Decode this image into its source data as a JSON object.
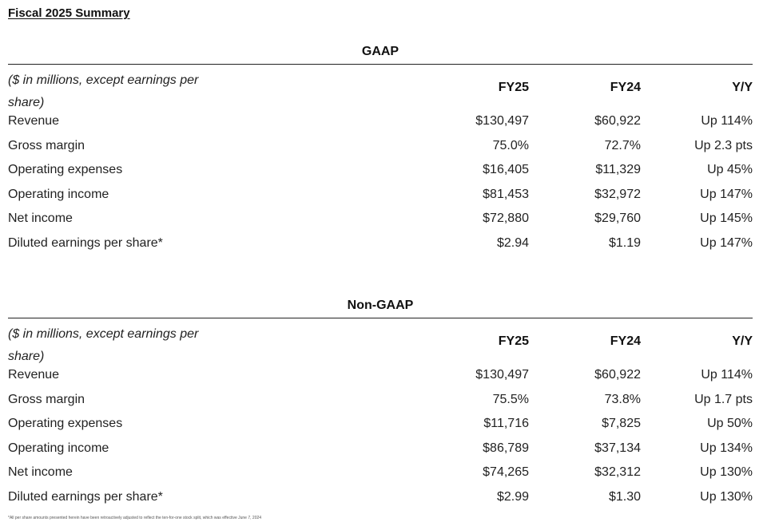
{
  "title": "Fiscal 2025 Summary",
  "columns": {
    "label": "($ in millions, except earnings per share)",
    "fy25": "FY25",
    "fy24": "FY24",
    "yy": "Y/Y"
  },
  "gaap": {
    "heading": "GAAP",
    "rows": [
      {
        "label": "Revenue",
        "fy25": "$130,497",
        "fy24": "$60,922",
        "yy": "Up 114%"
      },
      {
        "label": "Gross margin",
        "fy25": "75.0%",
        "fy24": "72.7%",
        "yy": "Up 2.3 pts"
      },
      {
        "label": "Operating expenses",
        "fy25": "$16,405",
        "fy24": "$11,329",
        "yy": "Up 45%"
      },
      {
        "label": "Operating income",
        "fy25": "$81,453",
        "fy24": "$32,972",
        "yy": "Up 147%"
      },
      {
        "label": "Net income",
        "fy25": "$72,880",
        "fy24": "$29,760",
        "yy": "Up 145%"
      },
      {
        "label": "Diluted earnings per share*",
        "fy25": "$2.94",
        "fy24": "$1.19",
        "yy": "Up 147%"
      }
    ]
  },
  "nongaap": {
    "heading": "Non-GAAP",
    "rows": [
      {
        "label": "Revenue",
        "fy25": "$130,497",
        "fy24": "$60,922",
        "yy": "Up 114%"
      },
      {
        "label": "Gross margin",
        "fy25": "75.5%",
        "fy24": "73.8%",
        "yy": "Up 1.7 pts"
      },
      {
        "label": "Operating expenses",
        "fy25": "$11,716",
        "fy24": "$7,825",
        "yy": "Up 50%"
      },
      {
        "label": "Operating income",
        "fy25": "$86,789",
        "fy24": "$37,134",
        "yy": "Up 134%"
      },
      {
        "label": "Net income",
        "fy25": "$74,265",
        "fy24": "$32,312",
        "yy": "Up 130%"
      },
      {
        "label": "Diluted earnings per share*",
        "fy25": "$2.99",
        "fy24": "$1.30",
        "yy": "Up 130%"
      }
    ]
  },
  "footnote": "*All per share amounts presented herein have been retroactively adjusted to reflect the ten-for-one stock split, which was effective June 7, 2024"
}
